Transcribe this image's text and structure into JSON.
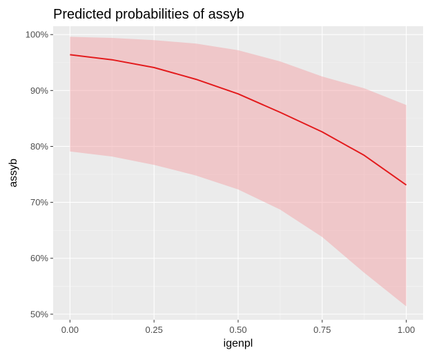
{
  "chart_data": {
    "type": "line",
    "title": "Predicted probabilities of assyb",
    "xlabel": "igenpl",
    "ylabel": "assyb",
    "xlim": [
      -0.05,
      1.05
    ],
    "ylim": [
      0.49,
      1.015
    ],
    "x_ticks": [
      0,
      0.25,
      0.5,
      0.75,
      1
    ],
    "x_tick_labels": [
      "0.00",
      "0.25",
      "0.50",
      "0.75",
      "1.00"
    ],
    "y_ticks": [
      0.5,
      0.6,
      0.7,
      0.8,
      0.9,
      1.0
    ],
    "y_tick_labels": [
      "50%",
      "60%",
      "70%",
      "80%",
      "90%",
      "100%"
    ],
    "grid": true,
    "colors": {
      "line": "#e31a1c",
      "ribbon": "#f4a4a8",
      "panel": "#ebebeb",
      "grid_major": "#ffffff",
      "grid_minor": "#f5f5f5"
    },
    "series": [
      {
        "x": [
          0,
          0.125,
          0.25,
          0.375,
          0.5,
          0.625,
          0.75,
          0.875,
          1
        ],
        "y": [
          0.964,
          0.955,
          0.941,
          0.92,
          0.894,
          0.861,
          0.826,
          0.784,
          0.731
        ],
        "ymin": [
          0.791,
          0.782,
          0.767,
          0.748,
          0.723,
          0.687,
          0.638,
          0.574,
          0.514
        ],
        "ymax": [
          0.996,
          0.994,
          0.99,
          0.984,
          0.972,
          0.952,
          0.925,
          0.904,
          0.874
        ]
      }
    ]
  }
}
